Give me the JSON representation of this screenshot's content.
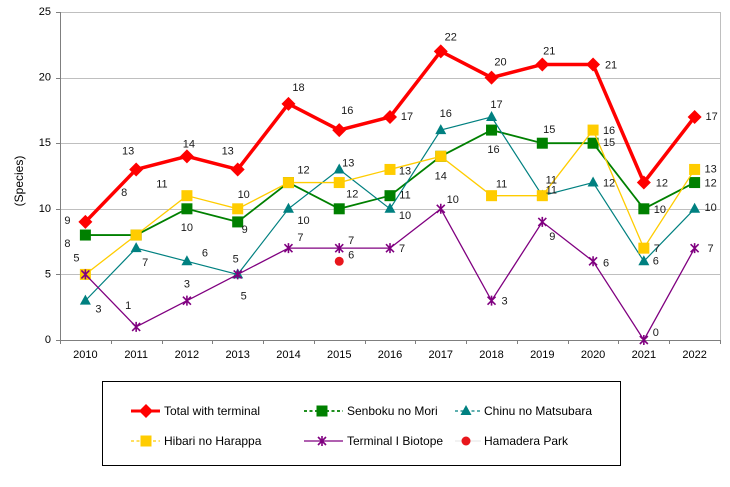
{
  "chart_data": {
    "type": "line",
    "categories": [
      "2010",
      "2011",
      "2012",
      "2013",
      "2014",
      "2015",
      "2016",
      "2017",
      "2018",
      "2019",
      "2020",
      "2021",
      "2022"
    ],
    "ylabel": "(Species)",
    "ylim": [
      0,
      25
    ],
    "yticks": [
      0,
      5,
      10,
      15,
      20,
      25
    ],
    "grid": true,
    "series": [
      {
        "name": "Total with terminal",
        "color": "#FF0000",
        "values": [
          9,
          13,
          14,
          13,
          18,
          16,
          17,
          22,
          20,
          21,
          21,
          12,
          17
        ]
      },
      {
        "name": "Senboku no Mori",
        "color": "#008000",
        "values": [
          8,
          8,
          10,
          9,
          12,
          10,
          11,
          14,
          16,
          15,
          15,
          10,
          12
        ]
      },
      {
        "name": "Chinu no Matsubara",
        "color": "#008080",
        "values": [
          3,
          7,
          6,
          5,
          10,
          13,
          10,
          16,
          17,
          11,
          12,
          6,
          10
        ]
      },
      {
        "name": "Hibari no Harappa",
        "color": "#FFCC00",
        "values": [
          5,
          8,
          11,
          10,
          12,
          12,
          13,
          14,
          11,
          11,
          16,
          7,
          13
        ]
      },
      {
        "name": "Terminal I Biotope",
        "color": "#800080",
        "values": [
          5,
          1,
          3,
          5,
          7,
          7,
          7,
          10,
          3,
          9,
          6,
          0,
          7
        ]
      },
      {
        "name": "Hamadera Park",
        "color": "#E8161C",
        "values": [
          null,
          null,
          null,
          null,
          null,
          6,
          null,
          null,
          null,
          null,
          null,
          null,
          null
        ]
      }
    ]
  }
}
